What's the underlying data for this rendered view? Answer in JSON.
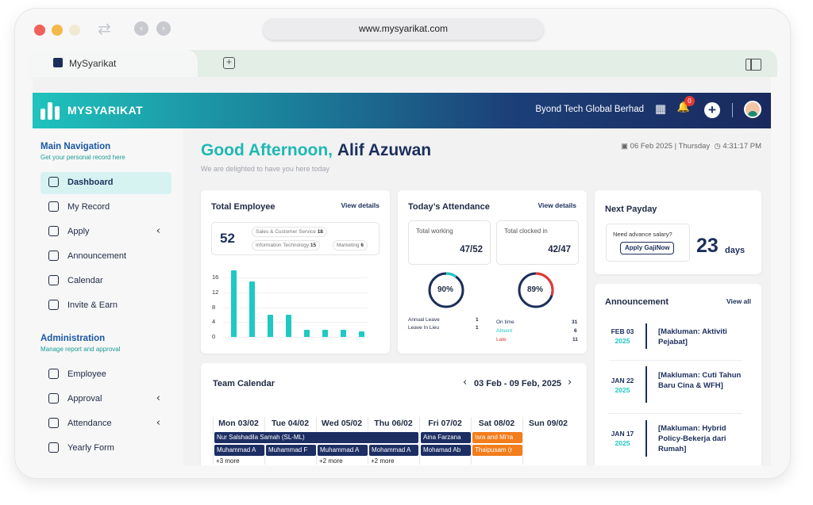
{
  "browser": {
    "url": "www.mysyarikat.com",
    "tab_title": "MySyarikat",
    "newtab_icon": "+",
    "back_icon": "‹",
    "forward_icon": "›",
    "sync_icon": "⇄"
  },
  "topbar": {
    "brand": "MYSYARIKAT",
    "company": "Byond Tech Global Berhad",
    "notification_count": "0",
    "plus": "+",
    "building_icon": "▦",
    "bell_icon": "🔔"
  },
  "sidebar": {
    "main_title": "Main Navigation",
    "main_sub": "Get your personal record here",
    "main_items": [
      {
        "label": "Dashboard",
        "icon": "dashboard-icon",
        "active": true
      },
      {
        "label": "My Record",
        "icon": "folder-icon"
      },
      {
        "label": "Apply",
        "icon": "apply-icon",
        "chevron": "‹"
      },
      {
        "label": "Announcement",
        "icon": "announcement-icon"
      },
      {
        "label": "Calendar",
        "icon": "calendar-icon"
      },
      {
        "label": "Invite & Earn",
        "icon": "gift-icon"
      }
    ],
    "admin_title": "Administration",
    "admin_sub": "Manage report and approval",
    "admin_items": [
      {
        "label": "Employee",
        "icon": "employee-icon"
      },
      {
        "label": "Approval",
        "icon": "approval-icon",
        "chevron": "‹"
      },
      {
        "label": "Attendance",
        "icon": "clock-icon",
        "chevron": "‹"
      },
      {
        "label": "Yearly Form",
        "icon": "form-icon"
      }
    ]
  },
  "header": {
    "greeting_prefix": "Good Afternoon,",
    "greeting_name": "Alif Azuwan",
    "subtitle": "We are delighted to have you here today",
    "date": "06 Feb 2025 | Thursday",
    "time": "4:31:17 PM"
  },
  "total_employee": {
    "title": "Total Employee",
    "link": "View details",
    "count": "52",
    "chips": [
      {
        "label": "Sales & Customer Service",
        "value": "18"
      },
      {
        "label": "Information Technology",
        "value": "15"
      },
      {
        "label": "Marketing",
        "value": "6"
      }
    ],
    "chart_data": {
      "type": "bar",
      "yticks": [
        "16",
        "12",
        "8",
        "4",
        "0"
      ],
      "ylim": [
        0,
        16
      ],
      "values": [
        18,
        15,
        6,
        6,
        2,
        2,
        2,
        1.5
      ]
    }
  },
  "attendance": {
    "title": "Today’s Attendance",
    "link": "View details",
    "working_label": "Total working",
    "working_value": "47/52",
    "working_pct": "90%",
    "working_fraction": 0.9,
    "clocked_label": "Total clocked in",
    "clocked_value": "42/47",
    "clocked_pct": "89%",
    "clocked_fraction": 0.89,
    "leave_rows": [
      {
        "label": "Annual Leave",
        "value": "1"
      },
      {
        "label": "Leave In Lieu",
        "value": "1"
      }
    ],
    "status_rows": [
      {
        "label": "On time",
        "value": "31",
        "color": "#1b2f5c"
      },
      {
        "label": "Absent",
        "value": "6",
        "color": "#1fc9c1"
      },
      {
        "label": "Late",
        "value": "11",
        "color": "#e53935"
      }
    ]
  },
  "payday": {
    "title": "Next Payday",
    "advance_q": "Need advance salary?",
    "button": "Apply GajiNow",
    "days": "23",
    "days_unit": "days"
  },
  "announcement": {
    "title": "Announcement",
    "link": "View all",
    "items": [
      {
        "date": "FEB 03",
        "year": "2025",
        "text": "[Makluman: Aktiviti Pejabat]"
      },
      {
        "date": "JAN 22",
        "year": "2025",
        "text": "[Makluman: Cuti Tahun Baru Cina & WFH]"
      },
      {
        "date": "JAN 17",
        "year": "2025",
        "text": "[Makluman: Hybrid Policy-Bekerja dari Rumah]"
      }
    ]
  },
  "calendar": {
    "title": "Team Calendar",
    "range": "03 Feb - 09 Feb, 2025",
    "prev": "‹",
    "next": "›",
    "days": [
      "Mon 03/02",
      "Tue 04/02",
      "Wed 05/02",
      "Thu 06/02",
      "Fri 07/02",
      "Sat 08/02",
      "Sun 09/02"
    ],
    "events": {
      "span": "Nur Salshadila Samah (SL-ML)",
      "mon2": "Muhammad A",
      "tue2": "Muhammad F",
      "wed2": "Muhammad A",
      "thu2": "Mohammad A",
      "fri1": "Aina Farzana",
      "fri2": "Mohamad Ab",
      "sat1": "Isra and Mi'ra",
      "sat2": "Thaipusam (r",
      "more_mon": "+3 more",
      "more_wed": "+2 more",
      "more_thu": "+2 more"
    }
  }
}
